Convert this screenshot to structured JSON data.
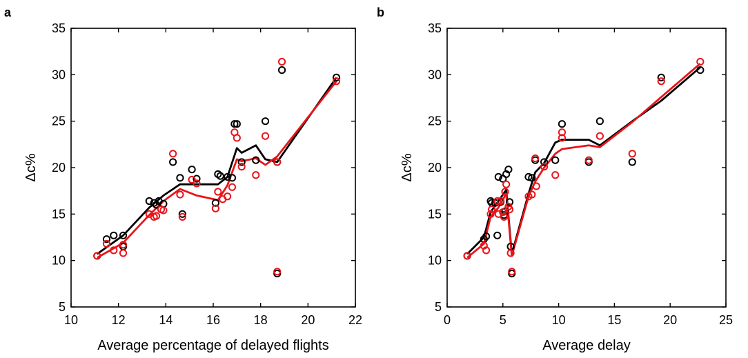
{
  "chart_data": [
    {
      "type": "scatter",
      "panel_label": "a",
      "xlabel": "Average percentage of delayed flights",
      "ylabel": "Δc%",
      "xlim": [
        10,
        22
      ],
      "ylim": [
        5,
        35
      ],
      "xticks": [
        10,
        12,
        14,
        16,
        18,
        20,
        22
      ],
      "yticks": [
        5,
        10,
        15,
        20,
        25,
        30,
        35
      ],
      "grid": false,
      "series": [
        {
          "color": "#000000",
          "points": [
            [
              11.1,
              10.5
            ],
            [
              11.5,
              12.3
            ],
            [
              11.8,
              12.7
            ],
            [
              12.2,
              12.7
            ],
            [
              12.2,
              11.5
            ],
            [
              13.3,
              16.4
            ],
            [
              13.5,
              16.2
            ],
            [
              13.6,
              16.0
            ],
            [
              13.7,
              16.4
            ],
            [
              13.9,
              16.1
            ],
            [
              14.3,
              20.6
            ],
            [
              14.6,
              18.9
            ],
            [
              14.7,
              15.0
            ],
            [
              15.1,
              19.8
            ],
            [
              15.3,
              18.8
            ],
            [
              16.1,
              16.2
            ],
            [
              16.2,
              19.3
            ],
            [
              16.3,
              19.1
            ],
            [
              16.6,
              19.0
            ],
            [
              16.8,
              18.9
            ],
            [
              16.9,
              24.7
            ],
            [
              17.0,
              24.7
            ],
            [
              17.2,
              20.6
            ],
            [
              17.8,
              20.8
            ],
            [
              18.2,
              25.0
            ],
            [
              18.7,
              8.6
            ],
            [
              18.7,
              20.6
            ],
            [
              18.9,
              30.5
            ],
            [
              21.2,
              29.7
            ]
          ],
          "trend": [
            [
              11.1,
              10.7
            ],
            [
              12.2,
              12.7
            ],
            [
              13.3,
              15.7
            ],
            [
              13.9,
              17.0
            ],
            [
              14.6,
              18.2
            ],
            [
              15.3,
              18.2
            ],
            [
              16.2,
              18.2
            ],
            [
              16.6,
              19.0
            ],
            [
              17.0,
              22.1
            ],
            [
              17.2,
              21.6
            ],
            [
              17.8,
              22.4
            ],
            [
              18.2,
              20.9
            ],
            [
              18.7,
              20.6
            ],
            [
              21.2,
              29.7
            ]
          ]
        },
        {
          "color": "#e8141a",
          "points": [
            [
              11.1,
              10.5
            ],
            [
              11.5,
              11.8
            ],
            [
              11.8,
              11.1
            ],
            [
              12.2,
              10.8
            ],
            [
              12.2,
              11.7
            ],
            [
              13.3,
              15.0
            ],
            [
              13.5,
              14.7
            ],
            [
              13.6,
              14.8
            ],
            [
              13.8,
              15.5
            ],
            [
              13.9,
              15.4
            ],
            [
              14.3,
              21.5
            ],
            [
              14.6,
              17.1
            ],
            [
              14.7,
              14.7
            ],
            [
              15.1,
              18.7
            ],
            [
              15.3,
              18.3
            ],
            [
              16.1,
              15.6
            ],
            [
              16.2,
              17.4
            ],
            [
              16.4,
              16.6
            ],
            [
              16.6,
              16.9
            ],
            [
              16.8,
              17.9
            ],
            [
              16.9,
              23.8
            ],
            [
              17.0,
              23.2
            ],
            [
              17.2,
              20.1
            ],
            [
              17.8,
              19.2
            ],
            [
              18.2,
              23.4
            ],
            [
              18.7,
              8.8
            ],
            [
              18.7,
              20.6
            ],
            [
              18.9,
              31.4
            ],
            [
              21.2,
              29.3
            ]
          ],
          "trend": [
            [
              11.1,
              10.3
            ],
            [
              12.2,
              11.9
            ],
            [
              13.3,
              14.9
            ],
            [
              13.9,
              16.4
            ],
            [
              14.6,
              17.7
            ],
            [
              15.3,
              17.0
            ],
            [
              16.2,
              16.5
            ],
            [
              16.6,
              18.1
            ],
            [
              17.0,
              20.9
            ],
            [
              17.2,
              20.7
            ],
            [
              17.8,
              21.0
            ],
            [
              18.2,
              20.3
            ],
            [
              18.7,
              21.2
            ],
            [
              21.2,
              29.3
            ]
          ]
        }
      ]
    },
    {
      "type": "scatter",
      "panel_label": "b",
      "xlabel": "Average delay",
      "ylabel": "Δc%",
      "xlim": [
        0,
        25
      ],
      "ylim": [
        5,
        35
      ],
      "xticks": [
        0,
        5,
        10,
        15,
        20,
        25
      ],
      "yticks": [
        5,
        10,
        15,
        20,
        25,
        30,
        35
      ],
      "grid": false,
      "series": [
        {
          "color": "#000000",
          "points": [
            [
              1.8,
              10.5
            ],
            [
              3.3,
              12.3
            ],
            [
              3.5,
              12.6
            ],
            [
              3.9,
              16.4
            ],
            [
              4.0,
              16.2
            ],
            [
              4.3,
              16.2
            ],
            [
              4.5,
              12.7
            ],
            [
              4.6,
              19.0
            ],
            [
              4.8,
              16.3
            ],
            [
              5.0,
              18.8
            ],
            [
              5.1,
              14.9
            ],
            [
              5.2,
              15.3
            ],
            [
              5.3,
              19.3
            ],
            [
              5.5,
              19.8
            ],
            [
              5.6,
              16.3
            ],
            [
              5.7,
              11.5
            ],
            [
              5.8,
              8.6
            ],
            [
              7.3,
              19.0
            ],
            [
              7.6,
              18.9
            ],
            [
              7.9,
              20.8
            ],
            [
              8.7,
              20.6
            ],
            [
              9.7,
              20.8
            ],
            [
              10.3,
              24.7
            ],
            [
              12.7,
              20.6
            ],
            [
              13.7,
              25.0
            ],
            [
              16.6,
              20.6
            ],
            [
              19.2,
              29.7
            ],
            [
              22.7,
              30.5
            ]
          ],
          "trend": [
            [
              1.8,
              10.7
            ],
            [
              3.3,
              12.5
            ],
            [
              3.9,
              15.2
            ],
            [
              4.6,
              16.4
            ],
            [
              5.3,
              17.6
            ],
            [
              5.8,
              10.7
            ],
            [
              7.3,
              17.2
            ],
            [
              7.9,
              19.5
            ],
            [
              8.7,
              20.5
            ],
            [
              9.7,
              22.7
            ],
            [
              10.3,
              23.0
            ],
            [
              12.7,
              23.0
            ],
            [
              13.7,
              22.4
            ],
            [
              16.6,
              25.0
            ],
            [
              19.2,
              27.2
            ],
            [
              22.7,
              30.8
            ]
          ]
        },
        {
          "color": "#e8141a",
          "points": [
            [
              1.8,
              10.5
            ],
            [
              3.3,
              11.6
            ],
            [
              3.5,
              11.1
            ],
            [
              3.9,
              15.0
            ],
            [
              4.0,
              15.5
            ],
            [
              4.5,
              16.4
            ],
            [
              4.6,
              15.0
            ],
            [
              4.8,
              16.4
            ],
            [
              5.0,
              15.2
            ],
            [
              5.1,
              14.7
            ],
            [
              5.2,
              17.4
            ],
            [
              5.3,
              18.2
            ],
            [
              5.5,
              15.8
            ],
            [
              5.6,
              15.5
            ],
            [
              5.7,
              10.8
            ],
            [
              5.8,
              8.8
            ],
            [
              7.3,
              16.9
            ],
            [
              7.6,
              17.1
            ],
            [
              7.9,
              21.0
            ],
            [
              8.0,
              18.0
            ],
            [
              8.7,
              20.1
            ],
            [
              9.7,
              19.2
            ],
            [
              10.3,
              23.8
            ],
            [
              10.3,
              23.2
            ],
            [
              12.7,
              20.8
            ],
            [
              13.7,
              23.4
            ],
            [
              16.6,
              21.5
            ],
            [
              19.2,
              29.3
            ],
            [
              22.7,
              31.4
            ]
          ],
          "trend": [
            [
              1.8,
              10.3
            ],
            [
              3.3,
              11.8
            ],
            [
              3.9,
              14.7
            ],
            [
              4.6,
              15.7
            ],
            [
              5.3,
              17.2
            ],
            [
              5.8,
              10.5
            ],
            [
              7.3,
              16.9
            ],
            [
              7.9,
              18.5
            ],
            [
              8.7,
              20.0
            ],
            [
              9.7,
              21.5
            ],
            [
              10.3,
              22.0
            ],
            [
              12.7,
              22.4
            ],
            [
              13.7,
              22.2
            ],
            [
              16.6,
              24.9
            ],
            [
              19.2,
              27.6
            ],
            [
              22.7,
              31.2
            ]
          ]
        }
      ]
    }
  ]
}
